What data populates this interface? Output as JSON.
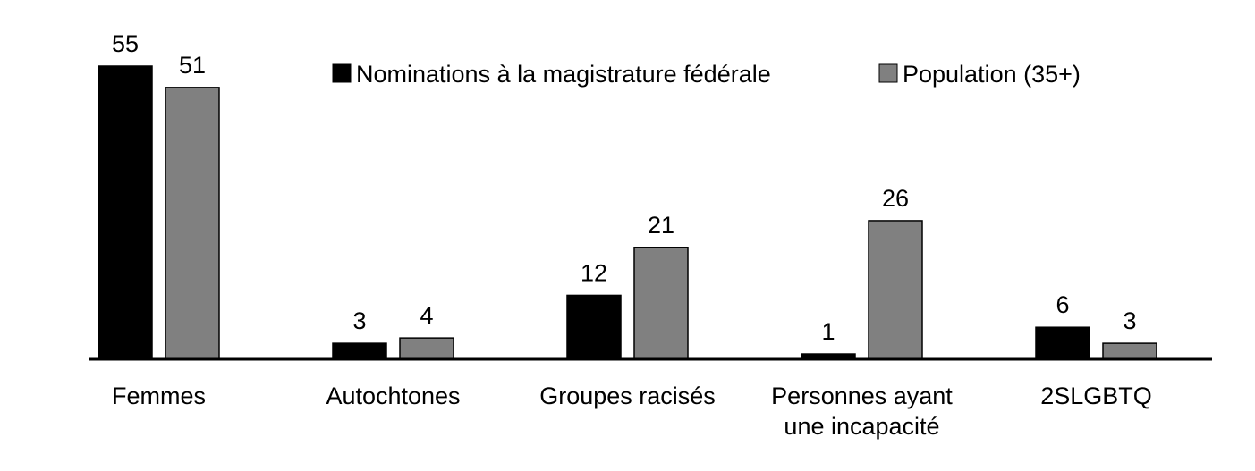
{
  "chart_data": {
    "type": "bar",
    "title": "",
    "xlabel": "",
    "ylabel": "",
    "categories": [
      [
        "Femmes"
      ],
      [
        "Autochtones"
      ],
      [
        "Groupes racisés"
      ],
      [
        "Personnes ayant",
        "une incapacité"
      ],
      [
        "2SLGBTQ"
      ]
    ],
    "series": [
      {
        "name": "Nominations à la magistrature fédérale",
        "color": "#000000",
        "values": [
          55,
          3,
          12,
          1,
          6
        ]
      },
      {
        "name": "Population (35+)",
        "color": "#808080",
        "values": [
          51,
          4,
          21,
          26,
          3
        ]
      }
    ],
    "ylim": [
      0,
      55
    ],
    "grid": false,
    "legend_position": "top-right",
    "data_labels": true
  }
}
